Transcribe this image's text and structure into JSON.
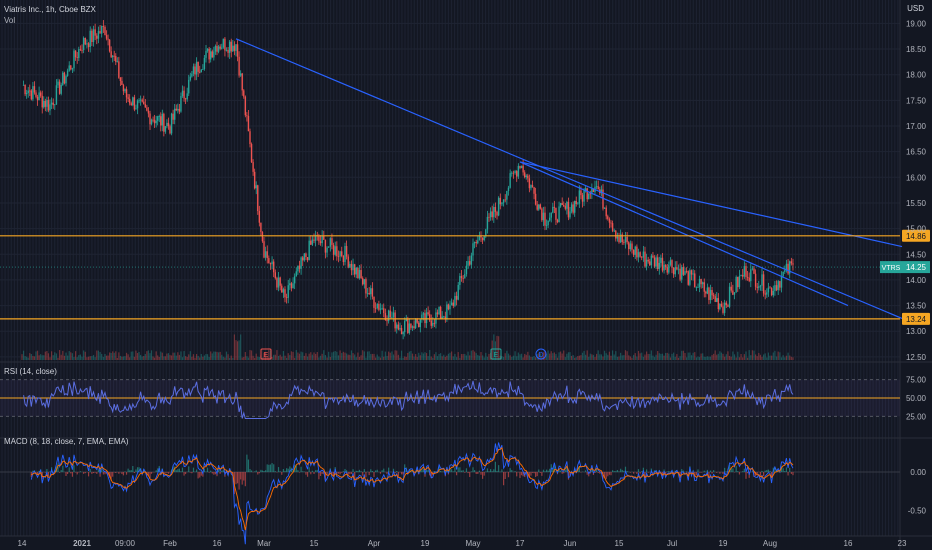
{
  "header": {
    "symbol_line": "Viatris Inc., 1h, Cboe BZX",
    "vol_label": "Vol",
    "currency": "USD"
  },
  "price_pane": {
    "price_axis_ticks": [
      "19.00",
      "18.50",
      "18.00",
      "17.50",
      "17.00",
      "16.50",
      "16.00",
      "15.50",
      "15.00",
      "14.50",
      "14.00",
      "13.50",
      "13.00",
      "12.50"
    ],
    "horizontal_levels": [
      {
        "value": 14.86,
        "label": "14.86",
        "color": "#f5a623"
      },
      {
        "value": 13.24,
        "label": "13.24",
        "color": "#f5a623"
      }
    ],
    "current_price": {
      "ticker": "VTRS",
      "value": "14.25",
      "color": "#26a69a"
    },
    "event_markers": [
      {
        "letter": "E",
        "type": "earnings",
        "color": "#ef5350"
      },
      {
        "letter": "E",
        "type": "earnings",
        "color": "#26a69a"
      },
      {
        "letter": "D",
        "type": "dividend",
        "color": "#2962ff"
      }
    ]
  },
  "rsi_pane": {
    "label": "RSI (14, close)",
    "ticks": [
      "75.00",
      "50.00",
      "25.00"
    ],
    "line_color": "#5b6ee1",
    "mid_line_color": "#f5a623"
  },
  "macd_pane": {
    "label": "MACD (8, 18, close, 7, EMA, EMA)",
    "ticks": [
      "0.00",
      "-0.50"
    ]
  },
  "time_axis": {
    "labels": [
      "14",
      "2021",
      "09:00",
      "Feb",
      "16",
      "Mar",
      "15",
      "Apr",
      "19",
      "May",
      "17",
      "Jun",
      "15",
      "Jul",
      "19",
      "Aug",
      "16",
      "23"
    ]
  },
  "chart_data": {
    "type": "line",
    "title": "Viatris Inc., 1h, Cboe BZX",
    "price_series": {
      "name": "VTRS",
      "x": [
        "Jan 14",
        "Jan 22",
        "2021",
        "Jan 7",
        "09:00",
        "Jan 25",
        "Feb",
        "Feb 8",
        "Feb 16",
        "Feb 22",
        "Mar",
        "Mar 8",
        "Mar 15",
        "Mar 22",
        "Apr",
        "Apr 12",
        "Apr 19",
        "Apr 26",
        "May",
        "May 10",
        "May 17",
        "May 24",
        "Jun",
        "Jun 8",
        "Jun 15",
        "Jun 22",
        "Jul",
        "Jul 12",
        "Jul 19",
        "Jul 26",
        "Aug",
        "Aug 5"
      ],
      "values": [
        17.8,
        17.4,
        18.6,
        18.9,
        17.6,
        17.2,
        17.0,
        18.1,
        18.6,
        18.6,
        14.6,
        13.6,
        14.8,
        14.5,
        13.6,
        13.1,
        13.2,
        13.4,
        14.6,
        15.4,
        16.3,
        15.2,
        15.4,
        15.9,
        14.8,
        14.4,
        14.3,
        13.9,
        13.5,
        14.2,
        13.8,
        14.3
      ]
    },
    "trendlines": [
      {
        "from": [
          "Feb 22",
          18.7
        ],
        "to": [
          "Aug 23",
          13.25
        ]
      },
      {
        "from": [
          "May 17",
          16.3
        ],
        "to": [
          "Aug 23",
          14.65
        ]
      },
      {
        "from": [
          "May 17",
          16.3
        ],
        "to": [
          "Aug 16",
          13.5
        ]
      }
    ],
    "y_range": [
      12.4,
      19.3
    ],
    "rsi_range": [
      20,
      80
    ],
    "macd_range": [
      -0.75,
      0.35
    ],
    "grid": true
  }
}
